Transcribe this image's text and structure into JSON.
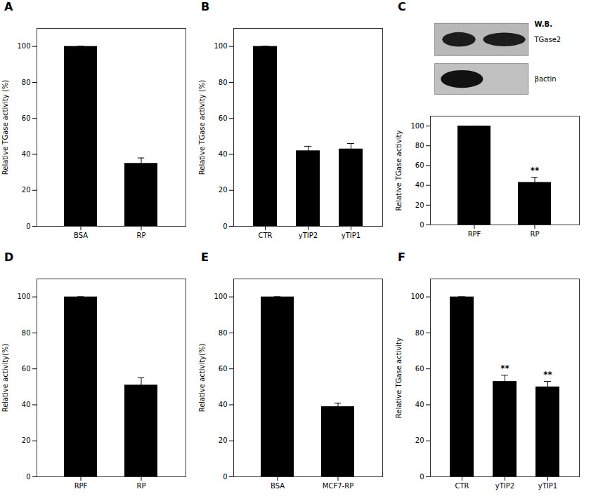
{
  "chart_data": [
    {
      "type": "bar",
      "title": "A",
      "categories": [
        "BSA",
        "RP"
      ],
      "values": [
        100,
        35
      ],
      "errors": [
        0,
        3
      ],
      "ylabel": "Relative TGase activity (%)",
      "ylim": [
        0,
        110
      ],
      "yticks": [
        0,
        20,
        40,
        60,
        80,
        100
      ],
      "grid": false
    },
    {
      "type": "bar",
      "title": "B",
      "categories": [
        "CTR",
        "yTIP2",
        "yTIP1"
      ],
      "values": [
        100,
        42,
        43
      ],
      "errors": [
        0,
        2.5,
        3
      ],
      "ylabel": "Relative TGase activity (%)",
      "ylim": [
        0,
        110
      ],
      "yticks": [
        0,
        20,
        40,
        60,
        80,
        100
      ],
      "grid": false
    },
    {
      "type": "bar",
      "title": "C",
      "categories": [
        "RPF",
        "RP"
      ],
      "values": [
        100,
        43
      ],
      "errors": [
        0,
        5
      ],
      "ylabel": "Relative TGase activity",
      "ylim": [
        0,
        110
      ],
      "yticks": [
        0,
        20,
        40,
        60,
        80,
        100
      ],
      "grid": false,
      "annotations": [
        {
          "text": "**",
          "category": "RP"
        }
      ],
      "blot": {
        "title": "W.B.",
        "bands": [
          "TGase2",
          "βactin"
        ]
      }
    },
    {
      "type": "bar",
      "title": "D",
      "categories": [
        "RPF",
        "RP"
      ],
      "values": [
        100,
        51
      ],
      "errors": [
        0,
        4
      ],
      "ylabel": "Relative activity(%)",
      "ylim": [
        0,
        110
      ],
      "yticks": [
        0,
        20,
        40,
        60,
        80,
        100
      ],
      "grid": false
    },
    {
      "type": "bar",
      "title": "E",
      "categories": [
        "BSA",
        "MCF7-RP"
      ],
      "values": [
        100,
        39
      ],
      "errors": [
        0,
        2
      ],
      "ylabel": "Relative activity(%)",
      "ylim": [
        0,
        110
      ],
      "yticks": [
        0,
        20,
        40,
        60,
        80,
        100
      ],
      "grid": false
    },
    {
      "type": "bar",
      "title": "F",
      "categories": [
        "CTR",
        "yTIP2",
        "yTIP1"
      ],
      "values": [
        100,
        53,
        50
      ],
      "errors": [
        0,
        3.5,
        3
      ],
      "ylabel": "Relative TGase activity",
      "ylim": [
        0,
        110
      ],
      "yticks": [
        0,
        20,
        40,
        60,
        80,
        100
      ],
      "grid": false,
      "annotations": [
        {
          "text": "**",
          "category": "yTIP2"
        },
        {
          "text": "**",
          "category": "yTIP1"
        }
      ]
    }
  ]
}
